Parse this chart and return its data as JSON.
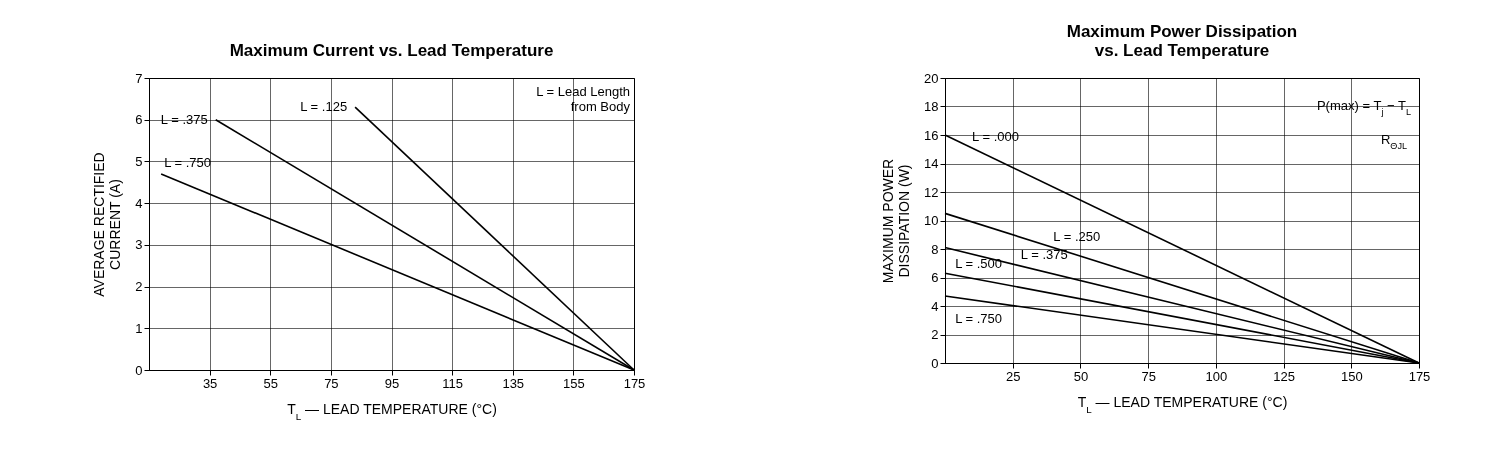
{
  "chart_data": [
    {
      "type": "line",
      "title": "Maximum Current vs. Lead Temperature",
      "xlabel": "T$_{L}$ — LEAD TEMPERATURE (°C)",
      "ylabel": "AVERAGE RECTIFIED\nCURRENT (A)",
      "xlim": [
        15,
        175
      ],
      "xticks": [
        35,
        55,
        75,
        95,
        115,
        135,
        155,
        175
      ],
      "ylim": [
        0,
        7
      ],
      "yticks": [
        0,
        1,
        2,
        3,
        4,
        5,
        6,
        7
      ],
      "grid": true,
      "legend": false,
      "annotations": [
        "L = Lead Length\nfrom Body"
      ],
      "series": [
        {
          "name": "L = .125",
          "color": "#000000",
          "x": [
            83,
            175
          ],
          "values": [
            6.3,
            0
          ]
        },
        {
          "name": "L = .375",
          "color": "#000000",
          "x": [
            37,
            175
          ],
          "values": [
            6.0,
            0
          ]
        },
        {
          "name": "L = .750",
          "color": "#000000",
          "x": [
            19,
            175
          ],
          "values": [
            4.7,
            0
          ]
        }
      ]
    },
    {
      "type": "line",
      "title": "Maximum Power Dissipation\nvs. Lead Temperature",
      "xlabel": "T$_{L}$ — LEAD TEMPERATURE (°C)",
      "ylabel": "MAXIMUM POWER\nDISSIPATION (W)",
      "xlim": [
        0,
        175
      ],
      "xticks": [
        25,
        50,
        75,
        100,
        125,
        150,
        175
      ],
      "ylim": [
        0,
        20
      ],
      "yticks": [
        0,
        2,
        4,
        6,
        8,
        10,
        12,
        14,
        16,
        18,
        20
      ],
      "grid": true,
      "legend": false,
      "annotations": [
        "P(max) = T$_{j}$ − T$_{L}$",
        "R$_{ΘJL}$"
      ],
      "series": [
        {
          "name": "L = .000",
          "color": "#000000",
          "x": [
            0,
            175
          ],
          "values": [
            16,
            0
          ]
        },
        {
          "name": "L = .250",
          "color": "#000000",
          "x": [
            0,
            175
          ],
          "values": [
            10.5,
            0
          ]
        },
        {
          "name": "L = .375",
          "color": "#000000",
          "x": [
            0,
            175
          ],
          "values": [
            8.1,
            0
          ]
        },
        {
          "name": "L = .500",
          "color": "#000000",
          "x": [
            0,
            175
          ],
          "values": [
            6.3,
            0
          ]
        },
        {
          "name": "L = .750",
          "color": "#000000",
          "x": [
            0,
            175
          ],
          "values": [
            4.7,
            0
          ]
        }
      ]
    }
  ]
}
